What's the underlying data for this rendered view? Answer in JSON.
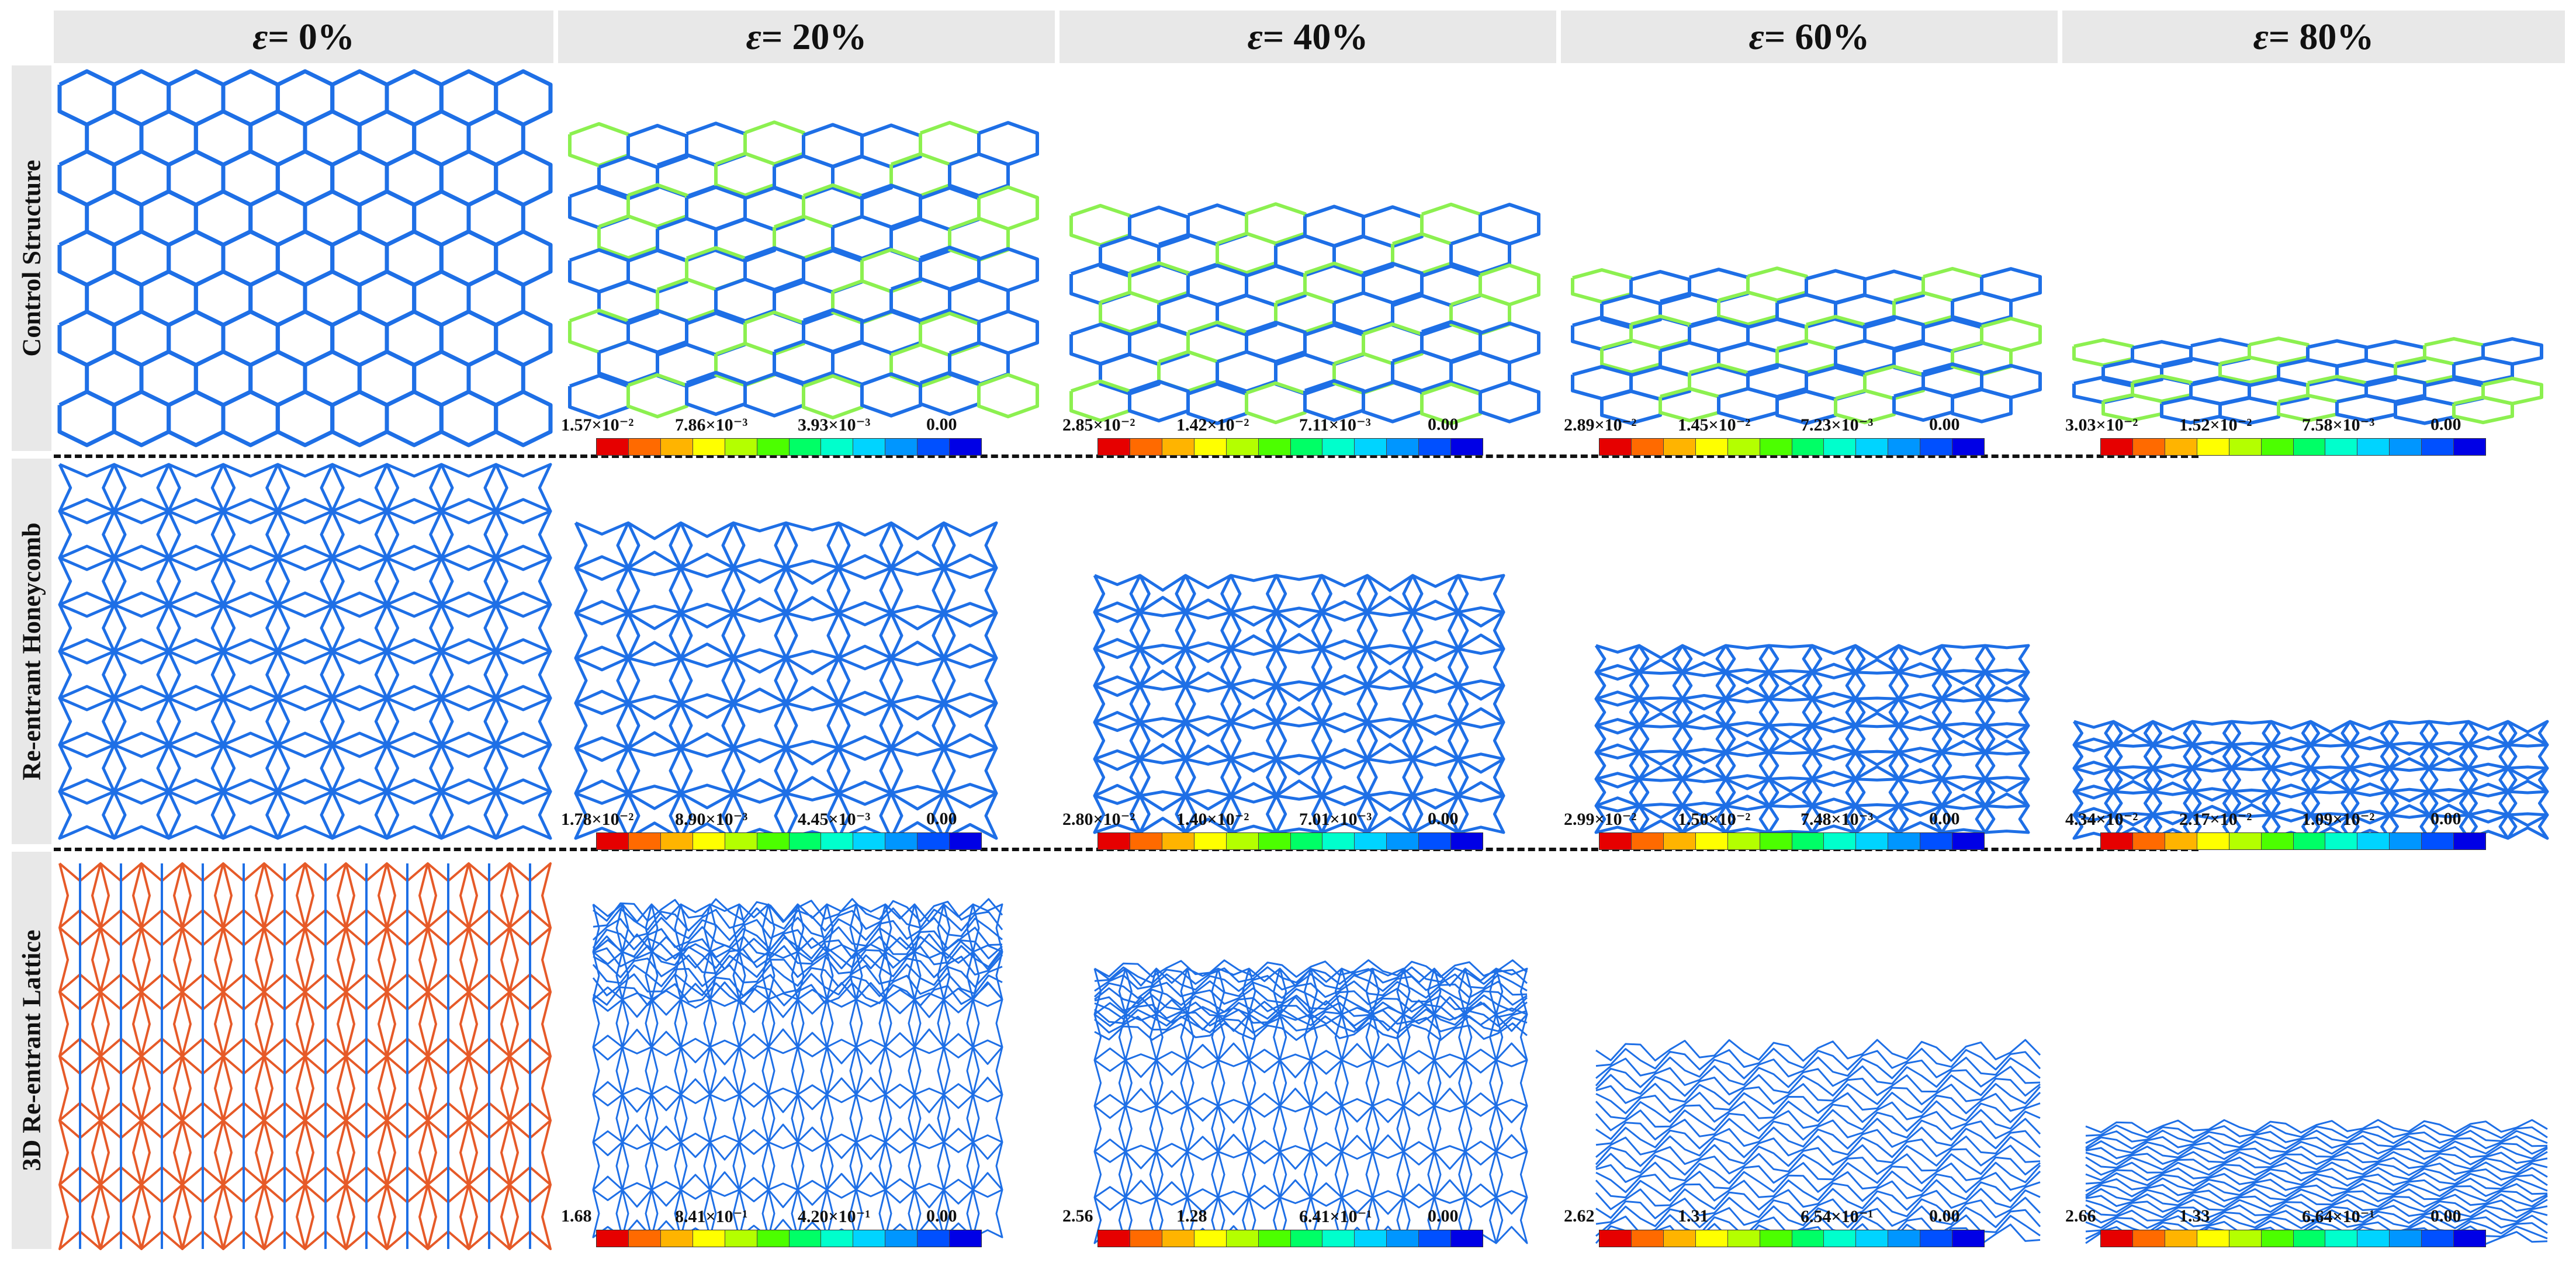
{
  "columns": [
    {
      "symbol": "ε",
      "label": " = 0%"
    },
    {
      "symbol": "ε",
      "label": " = 20%"
    },
    {
      "symbol": "ε",
      "label": " = 40%"
    },
    {
      "symbol": "ε",
      "label": " = 60%"
    },
    {
      "symbol": "ε",
      "label": " = 80%"
    }
  ],
  "rows": [
    {
      "label": "Control Structure"
    },
    {
      "label": "Re-entrant Honeycomb"
    },
    {
      "label": "3D Re-entrant Lattice"
    }
  ],
  "colorbar_colors": [
    "#e60000",
    "#ff6a00",
    "#ffb400",
    "#ffff00",
    "#b4ff00",
    "#4cff00",
    "#00ff66",
    "#00ffcc",
    "#00d4ff",
    "#0096ff",
    "#0050ff",
    "#0000e6"
  ],
  "lattice_colors": {
    "primary": "#1e6fe6",
    "secondary": "#e65a28",
    "high_stress": "#8cf050"
  },
  "scales": [
    [
      null,
      [
        "1.57×10⁻²",
        "7.86×10⁻³",
        "3.93×10⁻³",
        "0.00"
      ],
      [
        "2.85×10⁻²",
        "1.42×10⁻²",
        "7.11×10⁻³",
        "0.00"
      ],
      [
        "2.89×10⁻²",
        "1.45×10⁻²",
        "7.23×10⁻³",
        "0.00"
      ],
      [
        "3.03×10⁻²",
        "1.52×10⁻²",
        "7.58×10⁻³",
        "0.00"
      ]
    ],
    [
      null,
      [
        "1.78×10⁻²",
        "8.90×10⁻³",
        "4.45×10⁻³",
        "0.00"
      ],
      [
        "2.80×10⁻²",
        "1.40×10⁻²",
        "7.01×10⁻³",
        "0.00"
      ],
      [
        "2.99×10⁻²",
        "1.50×10⁻²",
        "7.48×10⁻³",
        "0.00"
      ],
      [
        "4.34×10⁻²",
        "2.17×10⁻²",
        "1.09×10⁻²",
        "0.00"
      ]
    ],
    [
      null,
      [
        "1.68",
        "8.41×10⁻¹",
        "4.20×10⁻¹",
        "0.00"
      ],
      [
        "2.56",
        "1.28",
        "6.41×10⁻¹",
        "0.00"
      ],
      [
        "2.62",
        "1.31",
        "6.54×10⁻¹",
        "0.00"
      ],
      [
        "2.66",
        "1.33",
        "6.64×10⁻¹",
        "0.00"
      ]
    ]
  ]
}
